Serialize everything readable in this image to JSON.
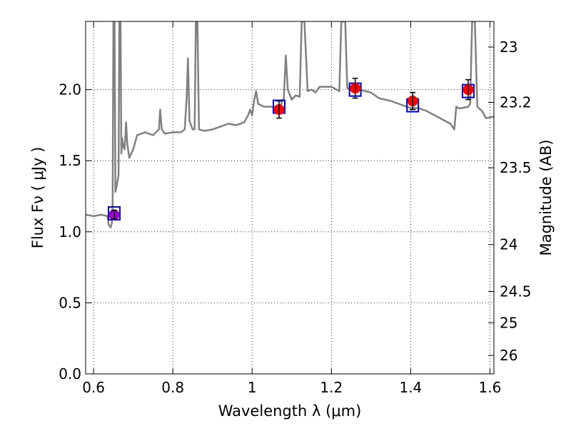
{
  "chart_data": {
    "type": "scatter",
    "xlabel": "Wavelength  λ (μm)",
    "ylabel": "Flux  Fν ( μJy )",
    "ylabel_right": "Magnitude (AB)",
    "xlim": [
      0.58,
      1.61
    ],
    "ylim": [
      0.0,
      2.48
    ],
    "grid": true,
    "x_ticks": [
      0.6,
      0.8,
      1.0,
      1.2,
      1.4,
      1.6
    ],
    "x_tick_labels": [
      "0.6",
      "0.8",
      "1",
      "1.2",
      "1.4",
      "1.6"
    ],
    "y_ticks": [
      0.0,
      0.5,
      1.0,
      1.5,
      2.0
    ],
    "y_tick_labels": [
      "0.0",
      "0.5",
      "1.0",
      "1.5",
      "2.0"
    ],
    "right_axis_ticks": [
      {
        "label": "23",
        "flux": 2.3
      },
      {
        "label": "23.2",
        "flux": 1.91
      },
      {
        "label": "23.5",
        "flux": 1.45
      },
      {
        "label": "24",
        "flux": 0.91
      },
      {
        "label": "24.5",
        "flux": 0.58
      },
      {
        "label": "25",
        "flux": 0.36
      },
      {
        "label": "26",
        "flux": 0.13
      }
    ],
    "model_spectrum": {
      "color": "#808080",
      "points": [
        [
          0.58,
          1.12
        ],
        [
          0.6,
          1.11
        ],
        [
          0.62,
          1.12
        ],
        [
          0.635,
          1.11
        ],
        [
          0.638,
          1.05
        ],
        [
          0.643,
          1.03
        ],
        [
          0.646,
          1.06
        ],
        [
          0.648,
          1.2
        ],
        [
          0.65,
          2.48
        ],
        [
          0.653,
          2.48
        ],
        [
          0.655,
          1.28
        ],
        [
          0.658,
          1.32
        ],
        [
          0.66,
          1.35
        ],
        [
          0.663,
          1.4
        ],
        [
          0.665,
          2.48
        ],
        [
          0.668,
          2.48
        ],
        [
          0.67,
          1.55
        ],
        [
          0.672,
          1.66
        ],
        [
          0.675,
          1.6
        ],
        [
          0.678,
          1.58
        ],
        [
          0.68,
          1.65
        ],
        [
          0.682,
          1.77
        ],
        [
          0.685,
          1.62
        ],
        [
          0.69,
          1.52
        ],
        [
          0.7,
          1.58
        ],
        [
          0.71,
          1.68
        ],
        [
          0.73,
          1.7
        ],
        [
          0.75,
          1.68
        ],
        [
          0.765,
          1.72
        ],
        [
          0.768,
          1.86
        ],
        [
          0.772,
          1.72
        ],
        [
          0.78,
          1.69
        ],
        [
          0.8,
          1.7
        ],
        [
          0.82,
          1.7
        ],
        [
          0.83,
          1.72
        ],
        [
          0.835,
          1.95
        ],
        [
          0.838,
          2.22
        ],
        [
          0.842,
          1.78
        ],
        [
          0.85,
          1.72
        ],
        [
          0.855,
          1.72
        ],
        [
          0.858,
          2.48
        ],
        [
          0.862,
          2.48
        ],
        [
          0.866,
          1.72
        ],
        [
          0.88,
          1.71
        ],
        [
          0.9,
          1.72
        ],
        [
          0.92,
          1.74
        ],
        [
          0.94,
          1.76
        ],
        [
          0.96,
          1.75
        ],
        [
          0.98,
          1.77
        ],
        [
          0.99,
          1.82
        ],
        [
          0.995,
          1.86
        ],
        [
          1.0,
          1.82
        ],
        [
          1.005,
          1.92
        ],
        [
          1.01,
          1.99
        ],
        [
          1.015,
          1.9
        ],
        [
          1.03,
          1.88
        ],
        [
          1.05,
          1.88
        ],
        [
          1.07,
          1.88
        ],
        [
          1.08,
          1.94
        ],
        [
          1.085,
          2.24
        ],
        [
          1.09,
          2.0
        ],
        [
          1.1,
          1.93
        ],
        [
          1.11,
          1.96
        ],
        [
          1.12,
          1.95
        ],
        [
          1.125,
          2.48
        ],
        [
          1.132,
          2.48
        ],
        [
          1.14,
          1.99
        ],
        [
          1.15,
          2.0
        ],
        [
          1.16,
          1.98
        ],
        [
          1.17,
          2.02
        ],
        [
          1.18,
          2.02
        ],
        [
          1.2,
          2.02
        ],
        [
          1.22,
          1.99
        ],
        [
          1.225,
          2.48
        ],
        [
          1.235,
          2.48
        ],
        [
          1.24,
          2.01
        ],
        [
          1.27,
          2.0
        ],
        [
          1.3,
          1.98
        ],
        [
          1.32,
          1.94
        ],
        [
          1.35,
          1.92
        ],
        [
          1.38,
          1.89
        ],
        [
          1.4,
          1.87
        ],
        [
          1.42,
          1.87
        ],
        [
          1.44,
          1.85
        ],
        [
          1.46,
          1.82
        ],
        [
          1.48,
          1.79
        ],
        [
          1.5,
          1.76
        ],
        [
          1.51,
          1.72
        ],
        [
          1.515,
          1.88
        ],
        [
          1.52,
          1.87
        ],
        [
          1.53,
          1.87
        ],
        [
          1.545,
          1.88
        ],
        [
          1.55,
          1.9
        ],
        [
          1.555,
          2.48
        ],
        [
          1.562,
          2.48
        ],
        [
          1.568,
          1.88
        ],
        [
          1.58,
          1.85
        ],
        [
          1.59,
          1.8
        ],
        [
          1.61,
          1.81
        ]
      ]
    },
    "model_photometry": {
      "marker": "square",
      "color": "#0000cc",
      "points": [
        [
          0.652,
          1.13
        ],
        [
          1.068,
          1.88
        ],
        [
          1.26,
          2.0
        ],
        [
          1.405,
          1.89
        ],
        [
          1.545,
          1.99
        ]
      ]
    },
    "observed_photometry": {
      "marker": "circle",
      "color": "#ff0000",
      "points": [
        {
          "x": 0.652,
          "y": 1.12,
          "err": 0.03,
          "color": "#9900cc"
        },
        {
          "x": 1.068,
          "y": 1.86,
          "err": 0.06,
          "color": "#ff0000"
        },
        {
          "x": 1.26,
          "y": 2.01,
          "err": 0.07,
          "color": "#ff0000"
        },
        {
          "x": 1.405,
          "y": 1.92,
          "err": 0.06,
          "color": "#ff0000"
        },
        {
          "x": 1.545,
          "y": 2.0,
          "err": 0.07,
          "color": "#ff0000"
        }
      ]
    }
  }
}
